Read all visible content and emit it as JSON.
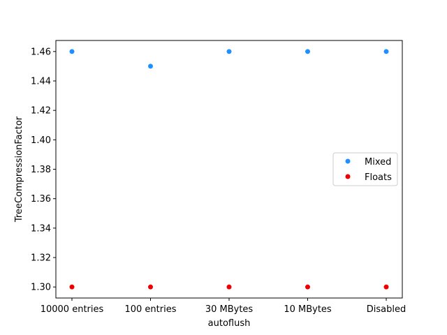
{
  "chart_data": {
    "type": "scatter",
    "categories": [
      "10000 entries",
      "100 entries",
      "30 MBytes",
      "10 MBytes",
      "Disabled"
    ],
    "series": [
      {
        "name": "Mixed",
        "color": "#1e90ff",
        "values": [
          1.46,
          1.45,
          1.46,
          1.46,
          1.46
        ]
      },
      {
        "name": "Floats",
        "color": "#ee0000",
        "values": [
          1.3,
          1.3,
          1.3,
          1.3,
          1.3
        ]
      }
    ],
    "xlabel": "autoflush",
    "ylabel": "TreeCompressionFactor",
    "ylim": [
      1.2925,
      1.4675
    ],
    "yticks": [
      "1.30",
      "1.32",
      "1.34",
      "1.36",
      "1.38",
      "1.40",
      "1.42",
      "1.44",
      "1.46"
    ],
    "grid": false,
    "legend_position": "center-right"
  }
}
